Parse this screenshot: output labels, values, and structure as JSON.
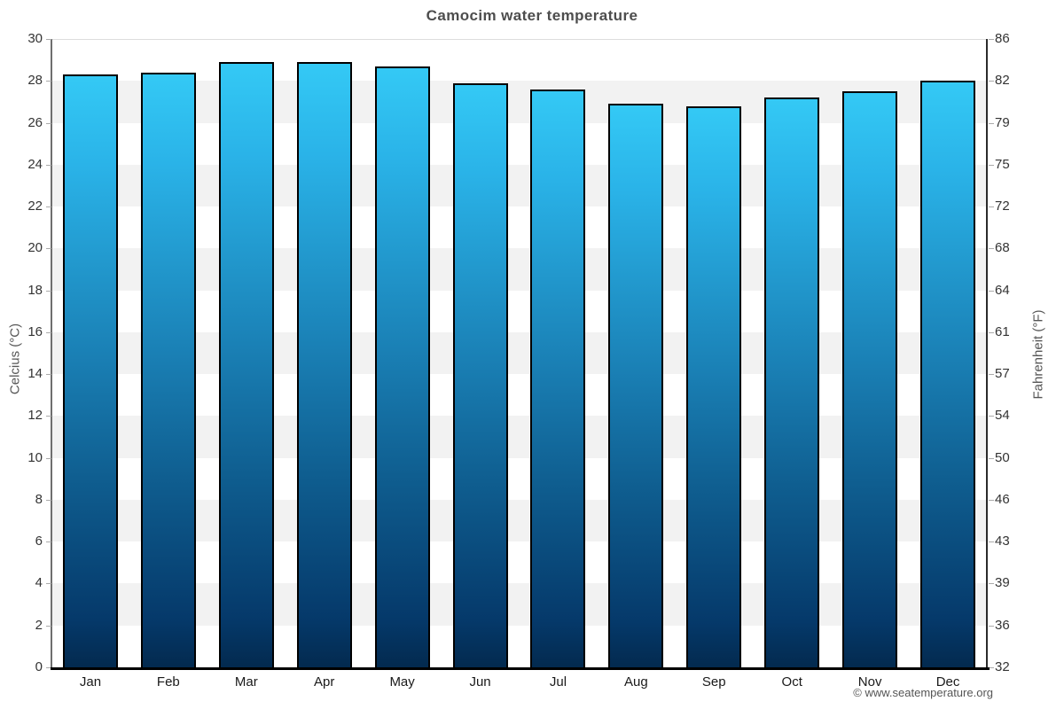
{
  "title": "Camocim water temperature",
  "footer": {
    "copyright": "© www.seatemperature.org"
  },
  "chart_data": {
    "type": "bar",
    "title": "Camocim water temperature",
    "categories": [
      "Jan",
      "Feb",
      "Mar",
      "Apr",
      "May",
      "Jun",
      "Jul",
      "Aug",
      "Sep",
      "Oct",
      "Nov",
      "Dec"
    ],
    "values": [
      28.3,
      28.4,
      28.9,
      28.9,
      28.7,
      27.9,
      27.6,
      26.9,
      26.8,
      27.2,
      27.5,
      28.0
    ],
    "unit": "°C",
    "xlabel": "",
    "ylabel_left": "Celcius (°C)",
    "ylabel_right": "Fahrenheit (°F)",
    "ylim": [
      0,
      30
    ],
    "ytick_step": 2,
    "yticks_celsius": [
      30,
      28,
      26,
      24,
      22,
      20,
      18,
      16,
      14,
      12,
      10,
      8,
      6,
      4,
      2,
      0
    ],
    "yticks_fahrenheit": [
      86,
      82,
      79,
      75,
      72,
      68,
      64,
      61,
      57,
      54,
      50,
      46,
      43,
      39,
      36,
      32
    ],
    "legend": null,
    "grid": "horizontal-bands-every-2C",
    "colors": {
      "bar_gradient": [
        "#34c9f5",
        "#2ab3e8",
        "#1a80b5",
        "#0f5e90",
        "#05396a",
        "#032a4f"
      ],
      "bar_gradient_stops": [
        0,
        15,
        47,
        68,
        92,
        100
      ],
      "bar_border": "#000000",
      "band_white": "#ffffff",
      "band_gray": "#f2f2f2",
      "title_text": "#4d4d4d",
      "tick_text": "#333333",
      "axis_label_text": "#555555",
      "footer_text": "#555555",
      "bottom_axis": "#000000"
    }
  }
}
